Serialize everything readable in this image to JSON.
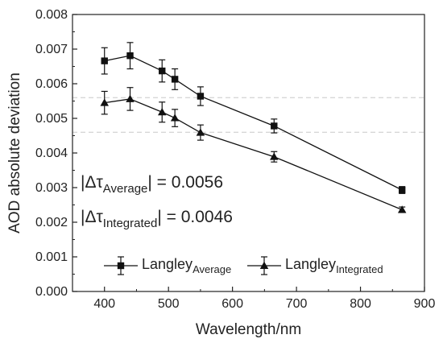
{
  "chart_data": {
    "type": "line",
    "title": "",
    "xlabel": "Wavelength/nm",
    "ylabel": "AOD absolute deviation",
    "xlim": [
      350,
      900
    ],
    "ylim": [
      0,
      0.008
    ],
    "x_ticks": [
      "400",
      "500",
      "600",
      "700",
      "800",
      "900"
    ],
    "y_ticks": [
      "0.000",
      "0.001",
      "0.002",
      "0.003",
      "0.004",
      "0.005",
      "0.006",
      "0.007",
      "0.008"
    ],
    "grid": false,
    "x": [
      400,
      440,
      490,
      510,
      550,
      665,
      865
    ],
    "series": [
      {
        "name_main": "Langley",
        "name_sub": "Average",
        "marker": "square",
        "color": "#111111",
        "values": [
          0.00666,
          0.00681,
          0.00637,
          0.00613,
          0.00564,
          0.00478,
          0.00293
        ],
        "errors": [
          0.00038,
          0.00038,
          0.00032,
          0.0003,
          0.00027,
          0.0002,
          0.0001
        ]
      },
      {
        "name_main": "Langley",
        "name_sub": "Integrated",
        "marker": "triangle",
        "color": "#111111",
        "values": [
          0.00545,
          0.00556,
          0.00518,
          0.00501,
          0.00459,
          0.00389,
          0.00236
        ],
        "errors": [
          0.00033,
          0.00033,
          0.00029,
          0.00025,
          0.00022,
          0.00015,
          8e-05
        ]
      }
    ],
    "reference_lines": [
      {
        "value": 0.0056,
        "style": "dashed",
        "color": "#c8c8c8"
      },
      {
        "value": 0.0046,
        "style": "dashed",
        "color": "#c8c8c8"
      }
    ],
    "annotations": [
      {
        "prefix": "|Δτ",
        "sub": "Average",
        "suffix": "| = 0.0056"
      },
      {
        "prefix": "|Δτ",
        "sub": "Integrated",
        "suffix": "| = 0.0046"
      }
    ],
    "legend_position": "bottom"
  }
}
